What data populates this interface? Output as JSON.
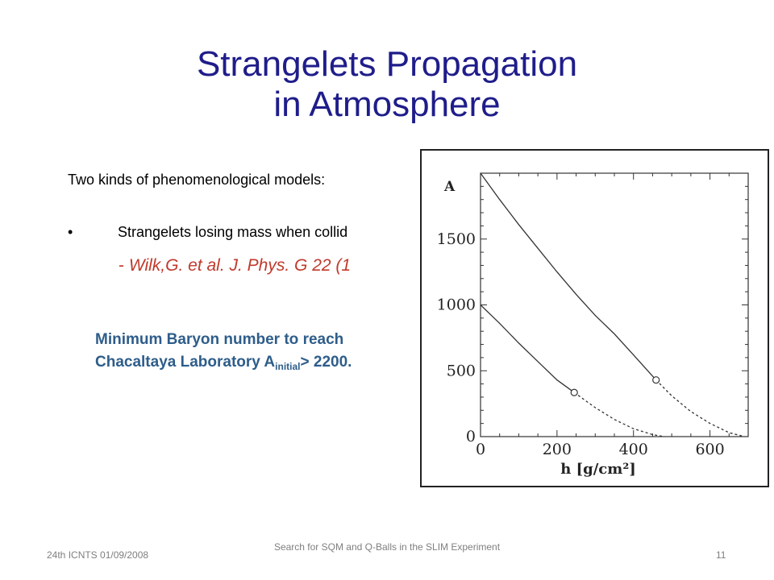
{
  "slide": {
    "title_line1": "Strangelets Propagation",
    "title_line2": "in Atmosphere",
    "intro": "Two kinds of phenomenological  models:",
    "bullet_text": "Strangelets losing mass when collid",
    "reference_dash": "- ",
    "reference": "Wilk,G. et al. J. Phys. G 22 (1",
    "note_line1": "Minimum Baryon number to reach",
    "note_line2_prefix": "Chacaltaya Laboratory A",
    "note_sub": "initial",
    "note_line2_suffix": "> 2200."
  },
  "chart_data": {
    "type": "line",
    "ylabel": "A",
    "xlabel": "h  [g/cm²]",
    "xlim": [
      0,
      700
    ],
    "ylim": [
      0,
      2000
    ],
    "x_ticks": [
      "0",
      "200",
      "400",
      "600"
    ],
    "y_ticks": [
      "0",
      "500",
      "1000",
      "1500"
    ],
    "series": [
      {
        "style": "solid",
        "points": [
          [
            0,
            2000
          ],
          [
            50,
            1800
          ],
          [
            100,
            1610
          ],
          [
            150,
            1430
          ],
          [
            200,
            1250
          ],
          [
            250,
            1080
          ],
          [
            300,
            920
          ],
          [
            350,
            780
          ],
          [
            400,
            620
          ],
          [
            459,
            430
          ]
        ]
      },
      {
        "style": "dashed",
        "points": [
          [
            459,
            430
          ],
          [
            500,
            310
          ],
          [
            550,
            190
          ],
          [
            600,
            100
          ],
          [
            650,
            30
          ],
          [
            690,
            0
          ]
        ]
      },
      {
        "style": "solid",
        "points": [
          [
            0,
            1000
          ],
          [
            50,
            860
          ],
          [
            100,
            710
          ],
          [
            150,
            570
          ],
          [
            200,
            430
          ],
          [
            245,
            335
          ]
        ]
      },
      {
        "style": "dashed",
        "points": [
          [
            245,
            335
          ],
          [
            300,
            220
          ],
          [
            350,
            130
          ],
          [
            400,
            60
          ],
          [
            450,
            15
          ],
          [
            480,
            0
          ]
        ]
      }
    ],
    "markers": [
      [
        245,
        335
      ],
      [
        459,
        430
      ]
    ]
  },
  "footer": {
    "left": "24th ICNTS 01/09/2008",
    "center": "Search for SQM and Q-Balls in the SLIM Experiment",
    "right": "11"
  }
}
